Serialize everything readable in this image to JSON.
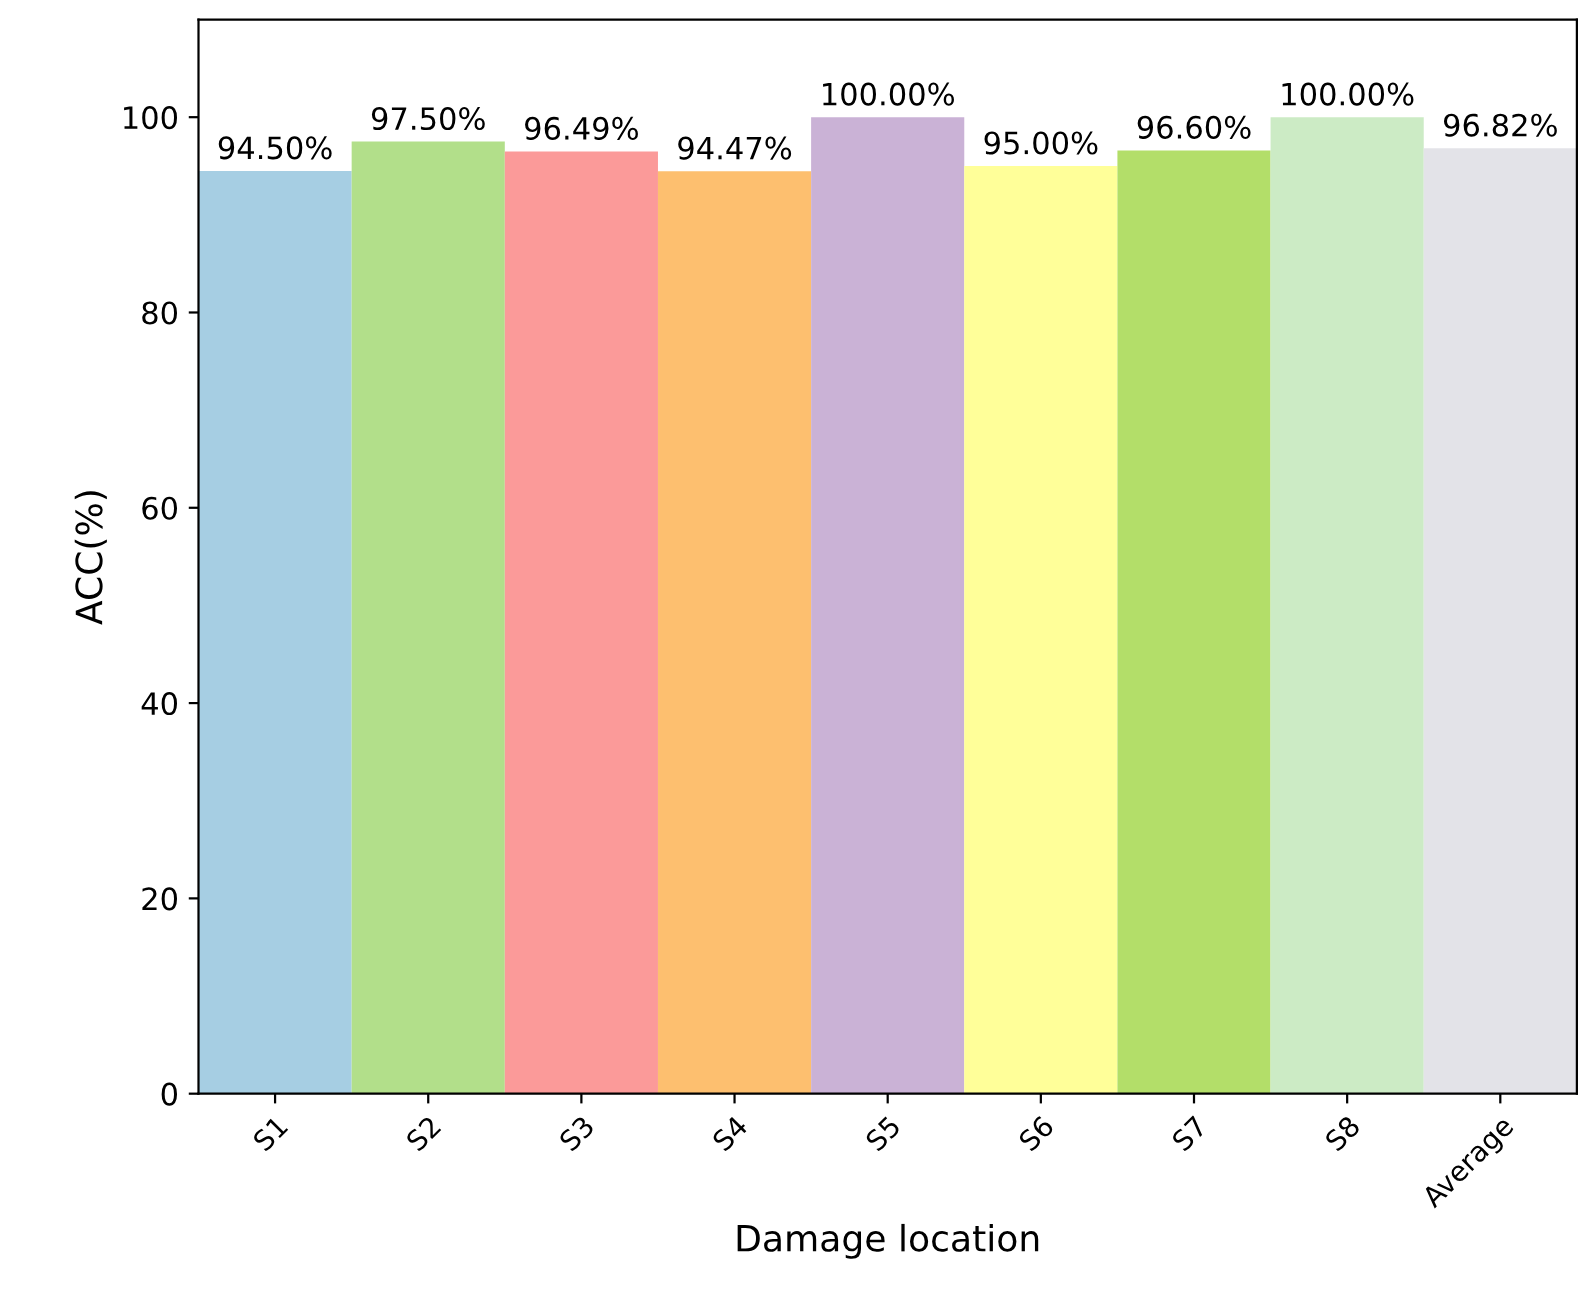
{
  "chart_data": {
    "type": "bar",
    "xlabel": "Damage location",
    "ylabel": "ACC(%)",
    "categories": [
      "S1",
      "S2",
      "S3",
      "S4",
      "S5",
      "S6",
      "S7",
      "S8",
      "Average"
    ],
    "values": [
      94.5,
      97.5,
      96.49,
      94.47,
      100.0,
      95.0,
      96.6,
      100.0,
      96.82
    ],
    "colors": [
      "#a6cee3",
      "#b2df8a",
      "#fb9a99",
      "#fdbf6f",
      "#cab2d6",
      "#ffff99",
      "#b3de69",
      "#ccebc5",
      "#e3e3e8"
    ],
    "value_labels": [
      "94.50%",
      "97.50%",
      "96.49%",
      "94.47%",
      "100.00%",
      "95.00%",
      "96.60%",
      "100.00%",
      "96.82%"
    ],
    "ylim": [
      0,
      110
    ],
    "yticks": [
      0,
      20,
      40,
      60,
      80,
      100
    ],
    "grid": false,
    "legend": false
  }
}
